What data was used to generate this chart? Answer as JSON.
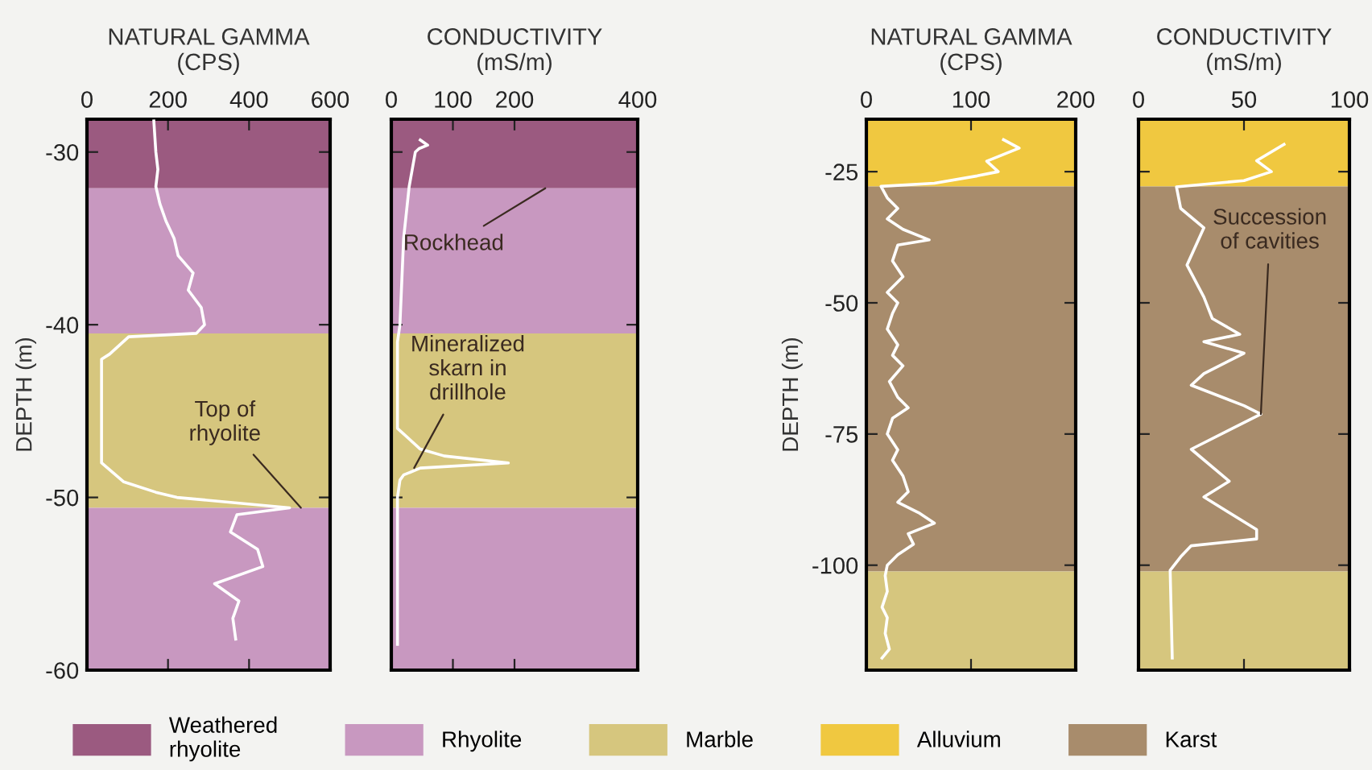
{
  "chart_data": [
    {
      "type": "line",
      "title": "NATURAL GAMMA\n(CPS)",
      "ylabel": "DEPTH (m)",
      "xlim": [
        0,
        600
      ],
      "xticks": [
        0,
        200,
        400,
        600
      ],
      "ylim": [
        -60,
        -28.1
      ],
      "yticks": [
        -30,
        -40,
        -50,
        -60
      ],
      "legend": "bottom",
      "series": [
        {
          "color": "#ffffff",
          "values": [
            -28.2,
            -30,
            -31,
            -32,
            -33,
            -34,
            -35,
            -36,
            -37,
            -38,
            -39,
            -40,
            -40.5,
            -40.7,
            -41.7,
            -42,
            -45,
            -48,
            -49.1,
            -49.7,
            -50,
            -50.6,
            -51,
            -52,
            -53,
            -54,
            -55,
            -56,
            -57,
            -58.2
          ],
          "x": [
            165,
            170,
            175,
            170,
            180,
            195,
            215,
            225,
            262,
            250,
            282,
            290,
            270,
            103,
            56,
            36,
            36,
            36,
            91,
            170,
            222,
            500,
            370,
            354,
            421,
            434,
            315,
            375,
            360,
            367
          ]
        }
      ],
      "bands": [
        {
          "axis": "y",
          "from": -28.1,
          "to": -32.1,
          "label": "Weathered\nrhyolite",
          "color": "#9b5a80"
        },
        {
          "axis": "y",
          "from": -32.1,
          "to": -40.5,
          "label": "Rhyolite",
          "color": "#c898c0"
        },
        {
          "axis": "y",
          "from": -40.5,
          "to": -50.6,
          "label": "Marble",
          "color": "#d6c67e"
        },
        {
          "axis": "y",
          "from": -50.6,
          "to": -60,
          "color": "#c898c0"
        }
      ],
      "annotations": [
        {
          "text": "Top of\nrhyolite",
          "x": 528,
          "y": -50.6
        }
      ]
    },
    {
      "type": "line",
      "title": "CONDUCTIVITY\n(mS/m)",
      "xlim": [
        0,
        400
      ],
      "xticks": [
        0,
        100,
        200,
        400
      ],
      "ylim": [
        -60,
        -28.1
      ],
      "yticks": [
        -30,
        -40,
        -50,
        -60
      ],
      "tick_labels": "x",
      "series": [
        {
          "color": "#ffffff",
          "values": [
            -29.3,
            -29.6,
            -29.8,
            -30,
            -32,
            -35,
            -40,
            -41,
            -46,
            -47.2,
            -47.6,
            -48,
            -48.3,
            -48.7,
            -49,
            -50,
            -58.5
          ],
          "x": [
            47,
            59,
            45,
            39,
            29,
            20,
            14,
            10,
            10,
            47,
            86,
            190,
            47,
            20,
            14,
            10,
            10
          ]
        }
      ],
      "bands": [
        {
          "axis": "y",
          "from": -28.1,
          "to": -32.1,
          "color": "#9b5a80"
        },
        {
          "axis": "y",
          "from": -32.1,
          "to": -40.5,
          "color": "#c898c0"
        },
        {
          "axis": "y",
          "from": -40.5,
          "to": -50.6,
          "color": "#d6c67e"
        },
        {
          "axis": "y",
          "from": -50.6,
          "to": -60,
          "color": "#c898c0"
        }
      ],
      "annotations": [
        {
          "text": "Rockhead",
          "x": 250,
          "y": -32.1
        },
        {
          "text": "Mineralized\nskarn in\ndrillhole",
          "x": 37,
          "y": -48.3
        }
      ]
    },
    {
      "type": "line",
      "title": "NATURAL GAMMA\n(CPS)",
      "ylabel": "DEPTH (m)",
      "xlim": [
        0,
        200
      ],
      "xticks": [
        0,
        100,
        200
      ],
      "ylim": [
        -120,
        -15
      ],
      "yticks": [
        -25,
        -50,
        -75,
        -100
      ],
      "legend": "bottom",
      "series": [
        {
          "color": "#ffffff",
          "values": [
            -18.9,
            -20.5,
            -23,
            -25,
            -25.8,
            -27.2,
            -27.8,
            -30,
            -32,
            -34,
            -36,
            -38,
            -39,
            -42,
            -45,
            -48,
            -50,
            -52,
            -55,
            -58,
            -60,
            -62,
            -65,
            -68,
            -70,
            -72,
            -75,
            -78,
            -80,
            -83,
            -86,
            -88,
            -90,
            -92,
            -94,
            -96,
            -98,
            -100,
            -102,
            -105,
            -108,
            -110,
            -113,
            -116,
            -117.7
          ],
          "x": [
            131,
            146,
            115,
            126,
            106,
            65,
            14,
            20,
            30,
            20,
            35,
            60,
            30,
            25,
            35,
            20,
            30,
            25,
            20,
            30,
            25,
            35,
            22,
            30,
            40,
            25,
            20,
            30,
            25,
            35,
            40,
            30,
            50,
            65,
            40,
            45,
            30,
            20,
            18,
            20,
            15,
            20,
            18,
            22,
            15
          ]
        }
      ],
      "bands": [
        {
          "axis": "y",
          "from": -15,
          "to": -27.8,
          "label": "Alluvium",
          "color": "#f0c840"
        },
        {
          "axis": "y",
          "from": -27.8,
          "to": -101.2,
          "label": "Karst",
          "color": "#a88c6c"
        },
        {
          "axis": "y",
          "from": -101.2,
          "to": -120,
          "color": "#d6c67e"
        }
      ]
    },
    {
      "type": "line",
      "title": "CONDUCTIVITY\n(mS/m)",
      "xlim": [
        0,
        100
      ],
      "xticks": [
        0,
        50,
        100
      ],
      "ylim": [
        -120,
        -15
      ],
      "yticks": [
        -25,
        -50,
        -75,
        -100
      ],
      "tick_labels": "x",
      "series": [
        {
          "color": "#ffffff",
          "values": [
            -19.8,
            -22.9,
            -25,
            -26.7,
            -27.9,
            -32,
            -35.7,
            -42.8,
            -48.9,
            -53,
            -56,
            -57.4,
            -59.6,
            -63.5,
            -65.7,
            -69.6,
            -71.2,
            -77.9,
            -84,
            -87,
            -93.2,
            -95,
            -96.3,
            -98.4,
            -101,
            -117.7
          ],
          "x": [
            69,
            56,
            63,
            50,
            18,
            20,
            31,
            23,
            31,
            35,
            48,
            31,
            50,
            31,
            25,
            50,
            58,
            25,
            43,
            31,
            56,
            56,
            25,
            20,
            15,
            16
          ]
        }
      ],
      "bands": [
        {
          "axis": "y",
          "from": -15,
          "to": -27.8,
          "color": "#f0c840"
        },
        {
          "axis": "y",
          "from": -27.8,
          "to": -101.2,
          "color": "#a88c6c"
        },
        {
          "axis": "y",
          "from": -101.2,
          "to": -120,
          "color": "#d6c67e"
        }
      ],
      "annotations": [
        {
          "text": "Succession\nof cavities",
          "x": 58,
          "y": -71.2
        }
      ]
    }
  ]
}
